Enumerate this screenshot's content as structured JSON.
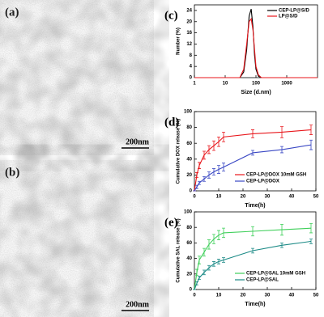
{
  "images": [
    {
      "label": "(a)",
      "scale": "200nm"
    },
    {
      "label": "(b)",
      "scale": "200nm"
    }
  ],
  "chart_data": [
    {
      "type": "line",
      "panel": "(c)",
      "x_label": "Size (d.nm)",
      "y_label": "Number (%)",
      "xscale": "log",
      "xlim": [
        1,
        10000
      ],
      "xticks": [
        1,
        10,
        100,
        1000
      ],
      "ylim": [
        0,
        26
      ],
      "yticks": [
        0,
        4,
        8,
        12,
        16,
        20,
        24
      ],
      "x": [
        1,
        20,
        30,
        40,
        50,
        60,
        70,
        80,
        90,
        100,
        120,
        150,
        200,
        10000
      ],
      "series": [
        {
          "name": "CEP-LP@S/D",
          "color": "#000000",
          "values": [
            0,
            0,
            0,
            2,
            10,
            22,
            24.5,
            18,
            8,
            3,
            0.5,
            0,
            0,
            0
          ]
        },
        {
          "name": "LP@S/D",
          "color": "#e8161b",
          "values": [
            0,
            0,
            0,
            3,
            12,
            20,
            21,
            17,
            10,
            4,
            1,
            0,
            0,
            0
          ]
        }
      ]
    },
    {
      "type": "line",
      "panel": "(d)",
      "x_label": "Time(h)",
      "y_label": "Cumulative DOX release (%)",
      "xlim": [
        0,
        50
      ],
      "xticks": [
        0,
        10,
        20,
        30,
        40,
        50
      ],
      "ylim": [
        0,
        100
      ],
      "yticks": [
        0,
        20,
        40,
        60,
        80,
        100
      ],
      "x": [
        0,
        1,
        2,
        4,
        6,
        8,
        10,
        12,
        24,
        36,
        48
      ],
      "series": [
        {
          "name": "CEP-LP@DOX 10mM GSH",
          "color": "#e8161b",
          "values": [
            0,
            20,
            32,
            45,
            52,
            57,
            62,
            68,
            72,
            74,
            77
          ],
          "errors": [
            0,
            3,
            4,
            5,
            5,
            6,
            6,
            6,
            5,
            7,
            6
          ]
        },
        {
          "name": "CEP-LP@DOX",
          "color": "#3a48c4",
          "values": [
            0,
            5,
            10,
            15,
            20,
            24,
            27,
            30,
            48,
            52,
            58
          ],
          "errors": [
            0,
            2,
            2,
            3,
            4,
            4,
            5,
            5,
            3,
            4,
            6
          ]
        }
      ]
    },
    {
      "type": "line",
      "panel": "(e)",
      "x_label": "Time(h)",
      "y_label": "Cumulative SAL release (%)",
      "xlim": [
        0,
        50
      ],
      "xticks": [
        0,
        10,
        20,
        30,
        40,
        50
      ],
      "ylim": [
        0,
        100
      ],
      "yticks": [
        0,
        20,
        40,
        60,
        80,
        100
      ],
      "x": [
        0,
        1,
        2,
        4,
        6,
        8,
        10,
        12,
        24,
        36,
        48
      ],
      "series": [
        {
          "name": "CEP-LP@SAL 10mM GSH",
          "color": "#3fcf5a",
          "values": [
            0,
            22,
            38,
            48,
            58,
            65,
            70,
            73,
            75,
            77,
            79
          ],
          "errors": [
            0,
            4,
            5,
            5,
            6,
            6,
            6,
            6,
            6,
            7,
            6
          ]
        },
        {
          "name": "CEP-LP@SAL",
          "color": "#1b8a86",
          "values": [
            0,
            8,
            15,
            22,
            28,
            33,
            36,
            38,
            50,
            57,
            62
          ],
          "errors": [
            0,
            2,
            2,
            3,
            3,
            3,
            3,
            3,
            3,
            3,
            3
          ]
        }
      ]
    }
  ]
}
